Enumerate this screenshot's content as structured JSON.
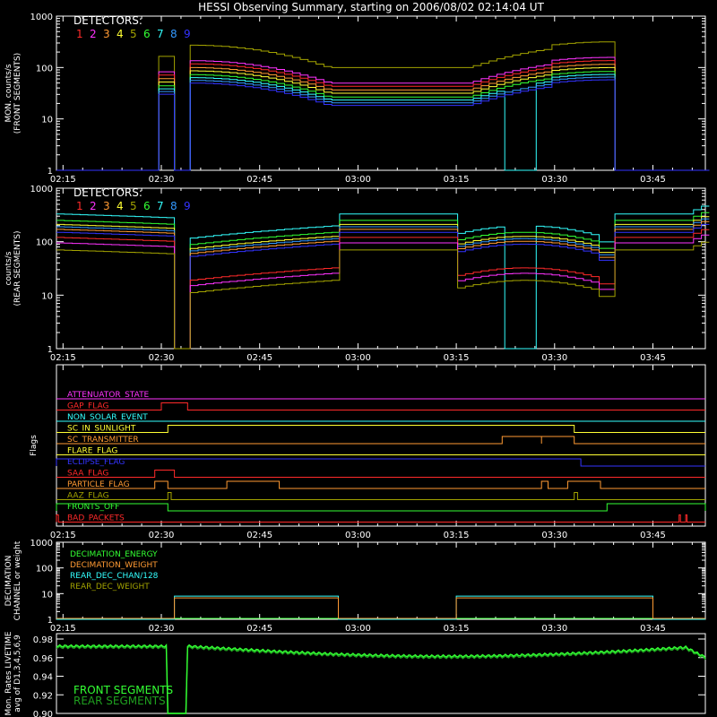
{
  "title": "HESSI Observing Summary, starting on 2006/08/02 02:14:04 UT",
  "time_ticks": [
    "02:15",
    "02:30",
    "02:45",
    "03:00",
    "03:15",
    "03:30",
    "03:45"
  ],
  "colors": {
    "det1": "#ff2a2a",
    "det2": "#ff33ff",
    "det3": "#ff9a33",
    "det4": "#ffff33",
    "det5": "#a3a300",
    "det6": "#33ff33",
    "det7": "#33ffff",
    "det8": "#3399ff",
    "det9": "#3333ff"
  },
  "chart_data": [
    {
      "type": "line",
      "id": "front",
      "ylabel": "MON. counts/s\n(FRONT SEGMENTS)",
      "yscale": "log",
      "ylim": [
        1,
        1000
      ],
      "yticks": [
        "1",
        "10",
        "100",
        "1000"
      ],
      "legend_title": "DETECTORS:",
      "legend_numbers": [
        "1",
        "2",
        "3",
        "4",
        "5",
        "6",
        "7",
        "8",
        "9"
      ],
      "xlim": [
        "02:14",
        "03:53"
      ]
    },
    {
      "type": "line",
      "id": "rear",
      "ylabel": "counts/s\n(REAR SEGMENTS)",
      "yscale": "log",
      "ylim": [
        1,
        1000
      ],
      "yticks": [
        "1",
        "10",
        "100",
        "1000"
      ],
      "legend_title": "DETECTORS:",
      "legend_numbers": [
        "1",
        "2",
        "3",
        "4",
        "5",
        "6",
        "7",
        "8",
        "9"
      ],
      "xlim": [
        "02:14",
        "03:53"
      ]
    },
    {
      "type": "line",
      "id": "flags",
      "ylabel": "Flags",
      "series": [
        {
          "name": "ATTENUATOR_STATE",
          "color": "#ff33ff",
          "on": []
        },
        {
          "name": "GAP_FLAG",
          "color": "#ff2a2a",
          "on": [
            [
              "02:30",
              "02:34"
            ]
          ]
        },
        {
          "name": "NON_SOLAR_EVENT",
          "color": "#33ffff",
          "on": []
        },
        {
          "name": "SC_IN_SUNLIGHT",
          "color": "#ffff33",
          "on": [
            [
              "02:31",
              "03:33"
            ]
          ]
        },
        {
          "name": "SC_TRANSMITTER",
          "color": "#ff9a33",
          "on": [
            [
              "03:22",
              "03:28"
            ],
            [
              "03:28",
              "03:33"
            ]
          ]
        },
        {
          "name": "FLARE_FLAG",
          "color": "#ffff33",
          "on": []
        },
        {
          "name": "ECLIPSE_FLAG",
          "color": "#3333ff",
          "on": [
            [
              "02:14",
              "03:34"
            ]
          ]
        },
        {
          "name": "SAA_FLAG",
          "color": "#ff2a2a",
          "on": [
            [
              "02:29",
              "02:32"
            ]
          ]
        },
        {
          "name": "PARTICLE_FLAG",
          "color": "#ff9a33",
          "on": [
            [
              "02:29",
              "02:31"
            ],
            [
              "02:40",
              "02:48"
            ],
            [
              "03:28",
              "03:29"
            ],
            [
              "03:32",
              "03:37"
            ]
          ]
        },
        {
          "name": "AAZ_FLAG",
          "color": "#a3a300",
          "on": [
            [
              "02:31",
              "02:31.5"
            ],
            [
              "03:33",
              "03:33.5"
            ]
          ]
        },
        {
          "name": "FRONTS_OFF",
          "color": "#33ff33",
          "on": [
            [
              "02:14",
              "02:31"
            ],
            [
              "03:38",
              "03:53"
            ]
          ]
        },
        {
          "name": "BAD_PACKETS",
          "color": "#ff2a2a",
          "on": [
            [
              "02:14",
              "02:14.3"
            ],
            [
              "03:49",
              "03:49.2"
            ],
            [
              "03:50",
              "03:50.2"
            ]
          ]
        }
      ]
    },
    {
      "type": "line",
      "id": "decimation",
      "ylabel": "DECIMATION\nCHANNEL or weight",
      "yscale": "log",
      "ylim": [
        1,
        1000
      ],
      "yticks": [
        "1",
        "10",
        "100",
        "1000"
      ],
      "series": [
        {
          "name": "DECIMATION_ENERGY",
          "color": "#33ff33"
        },
        {
          "name": "DECIMATION_WEIGHT",
          "color": "#ff9a33"
        },
        {
          "name": "REAR_DEC_CHAN/128",
          "color": "#33ffff"
        },
        {
          "name": "REAR_DEC_WEIGHT",
          "color": "#a3a300"
        }
      ],
      "rear_dec_on": [
        [
          "02:32",
          "02:57"
        ],
        [
          "03:15",
          "03:45"
        ]
      ],
      "rear_dec_value": 8
    },
    {
      "type": "line",
      "id": "livetime",
      "ylabel": "Mon. Rates LIVETIME\navg of D1,3,4,5,6,9",
      "ylim": [
        0.9,
        0.98
      ],
      "yticks": [
        "0.90",
        "0.92",
        "0.94",
        "0.96",
        "0.98"
      ],
      "series": [
        {
          "name": "FRONT SEGMENTS",
          "color": "#33ff33"
        },
        {
          "name": "REAR SEGMENTS",
          "color": "#1f9f1f"
        }
      ],
      "gap": [
        "02:31",
        "02:34"
      ]
    }
  ]
}
